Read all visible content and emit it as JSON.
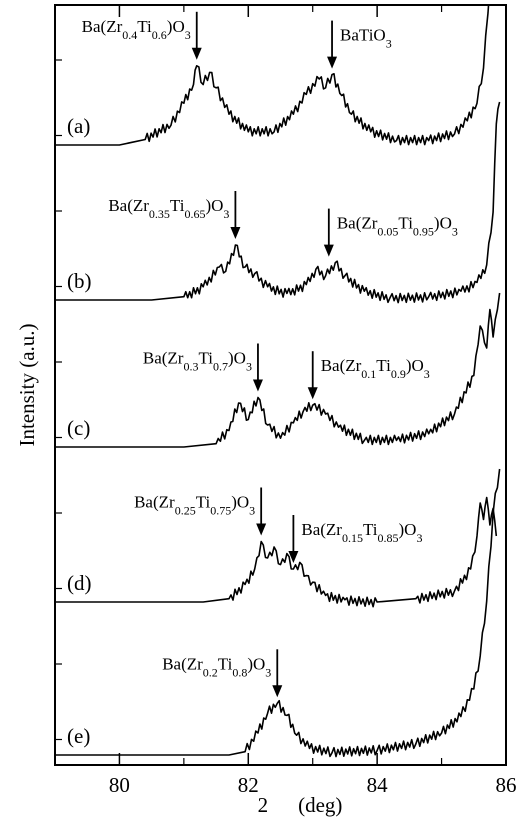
{
  "chart_data": {
    "type": "line",
    "title": "",
    "xlabel": "2",
    "xunit": "(deg)",
    "ylabel": "Intensity (a.u.)",
    "xlim": [
      79,
      86
    ],
    "xticks": [
      80,
      82,
      84,
      86
    ],
    "xtick_labels": [
      "80",
      "82",
      "84",
      "86"
    ],
    "stacked_panels": 5,
    "series": [
      {
        "label": "(a)",
        "annotations": [
          {
            "formula": [
              [
                "Ba(Zr",
                ""
              ],
              [
                "0.4",
                "sub"
              ],
              [
                "Ti",
                ""
              ],
              [
                "0.6",
                "sub"
              ],
              [
                ")O",
                ""
              ],
              [
                "3",
                "sub"
              ]
            ],
            "x": 81.2,
            "text_pos": "left"
          },
          {
            "formula": [
              [
                "BaTiO",
                ""
              ],
              [
                "3",
                "sub"
              ]
            ],
            "x": 83.3,
            "text_pos": "right"
          }
        ],
        "x": [
          79.0,
          80.0,
          80.4,
          80.8,
          81.0,
          81.15,
          81.2,
          81.3,
          81.4,
          81.5,
          81.7,
          82.0,
          82.4,
          82.7,
          82.9,
          83.1,
          83.2,
          83.3,
          83.45,
          83.6,
          83.9,
          84.3,
          84.8,
          85.2,
          85.4,
          85.55,
          85.65,
          85.72,
          85.8,
          85.85
        ],
        "y": [
          0.0,
          0.0,
          0.05,
          0.18,
          0.38,
          0.55,
          0.72,
          0.55,
          0.66,
          0.52,
          0.28,
          0.12,
          0.12,
          0.28,
          0.46,
          0.6,
          0.52,
          0.64,
          0.45,
          0.28,
          0.12,
          0.04,
          0.04,
          0.1,
          0.22,
          0.38,
          0.7,
          1.2,
          1.75,
          1.8
        ]
      },
      {
        "label": "(b)",
        "annotations": [
          {
            "formula": [
              [
                "Ba(Zr",
                ""
              ],
              [
                "0.35",
                "sub"
              ],
              [
                "Ti",
                ""
              ],
              [
                "0.65",
                "sub"
              ],
              [
                ")O",
                ""
              ],
              [
                "3",
                "sub"
              ]
            ],
            "x": 81.8,
            "text_pos": "left"
          },
          {
            "formula": [
              [
                "Ba(Zr",
                ""
              ],
              [
                "0.05",
                "sub"
              ],
              [
                "Ti",
                ""
              ],
              [
                "0.95",
                "sub"
              ],
              [
                ")O",
                ""
              ],
              [
                "3",
                "sub"
              ]
            ],
            "x": 83.25,
            "text_pos": "right"
          }
        ],
        "x": [
          79.0,
          80.5,
          81.0,
          81.3,
          81.55,
          81.65,
          81.8,
          81.95,
          82.1,
          82.3,
          82.6,
          82.9,
          83.05,
          83.2,
          83.35,
          83.5,
          83.8,
          84.2,
          84.8,
          85.3,
          85.55,
          85.7,
          85.8,
          85.85,
          85.9
        ],
        "y": [
          0.0,
          0.0,
          0.03,
          0.12,
          0.3,
          0.26,
          0.5,
          0.3,
          0.24,
          0.12,
          0.06,
          0.14,
          0.28,
          0.22,
          0.34,
          0.22,
          0.08,
          0.02,
          0.03,
          0.08,
          0.16,
          0.32,
          0.8,
          1.6,
          1.8
        ]
      },
      {
        "label": "(c)",
        "annotations": [
          {
            "formula": [
              [
                "Ba(Zr",
                ""
              ],
              [
                "0.3",
                "sub"
              ],
              [
                "Ti",
                ""
              ],
              [
                "0.7",
                "sub"
              ],
              [
                ")O",
                ""
              ],
              [
                "3",
                "sub"
              ]
            ],
            "x": 82.15,
            "text_pos": "left"
          },
          {
            "formula": [
              [
                "Ba(Zr",
                ""
              ],
              [
                "0.1",
                "sub"
              ],
              [
                "Ti",
                ""
              ],
              [
                "0.9",
                "sub"
              ],
              [
                ")O",
                ""
              ],
              [
                "3",
                "sub"
              ]
            ],
            "x": 83.0,
            "text_pos": "right"
          }
        ],
        "x": [
          79.0,
          81.0,
          81.5,
          81.7,
          81.85,
          82.0,
          82.15,
          82.3,
          82.5,
          82.7,
          82.85,
          83.0,
          83.2,
          83.4,
          83.8,
          84.3,
          84.8,
          85.2,
          85.5,
          85.6,
          85.7,
          85.75,
          85.8,
          85.9
        ],
        "y": [
          0.0,
          0.0,
          0.03,
          0.15,
          0.4,
          0.25,
          0.45,
          0.2,
          0.08,
          0.22,
          0.32,
          0.38,
          0.3,
          0.18,
          0.06,
          0.06,
          0.12,
          0.3,
          0.65,
          1.1,
          0.9,
          1.25,
          1.0,
          1.4
        ]
      },
      {
        "label": "(d)",
        "annotations": [
          {
            "formula": [
              [
                "Ba(Zr",
                ""
              ],
              [
                "0.25",
                "sub"
              ],
              [
                "Ti",
                ""
              ],
              [
                "0.75",
                "sub"
              ],
              [
                ")O",
                ""
              ],
              [
                "3",
                "sub"
              ]
            ],
            "x": 82.2,
            "text_pos": "left"
          },
          {
            "formula": [
              [
                "Ba(Zr",
                ""
              ],
              [
                "0.15",
                "sub"
              ],
              [
                "Ti",
                ""
              ],
              [
                "0.85",
                "sub"
              ],
              [
                ")O",
                ""
              ],
              [
                "3",
                "sub"
              ]
            ],
            "x": 82.7,
            "text_pos": "right"
          }
        ],
        "x": [
          79.0,
          81.3,
          81.7,
          81.95,
          82.1,
          82.2,
          82.3,
          82.4,
          82.5,
          82.6,
          82.7,
          82.8,
          82.9,
          83.0,
          83.2,
          83.5,
          84.0,
          84.6,
          85.2,
          85.45,
          85.55,
          85.6,
          85.65,
          85.7,
          85.75,
          85.8,
          85.85
        ],
        "y": [
          0.0,
          0.0,
          0.03,
          0.16,
          0.3,
          0.55,
          0.4,
          0.5,
          0.34,
          0.44,
          0.3,
          0.36,
          0.24,
          0.18,
          0.06,
          0.02,
          0.0,
          0.03,
          0.1,
          0.3,
          0.6,
          0.9,
          0.75,
          0.95,
          0.7,
          0.85,
          0.6
        ]
      },
      {
        "label": "(e)",
        "annotations": [
          {
            "formula": [
              [
                "Ba(Zr",
                ""
              ],
              [
                "0.2",
                "sub"
              ],
              [
                "Ti",
                ""
              ],
              [
                "0.8",
                "sub"
              ],
              [
                ")O",
                ""
              ],
              [
                "3",
                "sub"
              ]
            ],
            "x": 82.45,
            "text_pos": "left"
          }
        ],
        "x": [
          79.0,
          81.7,
          81.95,
          82.15,
          82.3,
          82.45,
          82.6,
          82.75,
          82.95,
          83.3,
          84.0,
          84.6,
          85.0,
          85.3,
          85.5,
          85.6,
          85.7,
          85.8,
          85.9
        ],
        "y": [
          0.0,
          0.0,
          0.03,
          0.2,
          0.38,
          0.47,
          0.36,
          0.18,
          0.06,
          0.02,
          0.04,
          0.1,
          0.2,
          0.35,
          0.6,
          0.9,
          1.4,
          2.2,
          2.6
        ]
      }
    ]
  }
}
